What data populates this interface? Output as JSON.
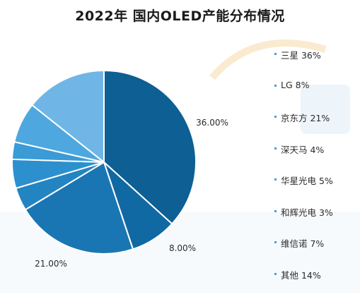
{
  "title": "2022年 国内OLED产能分布情况",
  "chart_data": {
    "type": "pie",
    "title": "2022年 国内OLED产能分布情况",
    "slices": [
      {
        "label": "三星",
        "value": 36,
        "color": "#0d5f94",
        "data_label": "36.00%"
      },
      {
        "label": "LG",
        "value": 8,
        "color": "#1069a3",
        "data_label": "8.00%"
      },
      {
        "label": "京东方",
        "value": 21,
        "color": "#1a76b3",
        "data_label": "21.00%"
      },
      {
        "label": "深天马",
        "value": 4,
        "color": "#2384c2",
        "data_label": ""
      },
      {
        "label": "华星光电",
        "value": 5,
        "color": "#2c90cf",
        "data_label": ""
      },
      {
        "label": "和辉光电",
        "value": 3,
        "color": "#3a9bd7",
        "data_label": ""
      },
      {
        "label": "维信诺",
        "value": 7,
        "color": "#4ea8df",
        "data_label": ""
      },
      {
        "label": "其他",
        "value": 14,
        "color": "#6fb6e6",
        "data_label": ""
      }
    ],
    "legend": [
      "三星 36%",
      "LG 8%",
      "京东方 21%",
      "深天马 4%",
      "华星光电 5%",
      "和辉光电 3%",
      "维信诺 7%",
      "其他 14%"
    ],
    "legend_position": "right"
  }
}
